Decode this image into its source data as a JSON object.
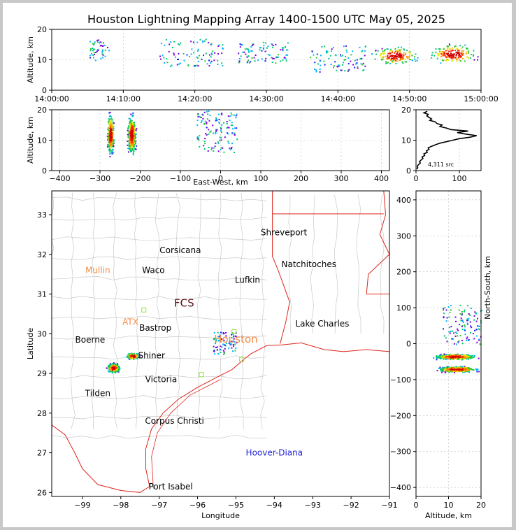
{
  "title": "Houston Lightning Mapping Array 1400-1500 UTC May 05, 2025",
  "colors": {
    "black": "#000000",
    "grid": "#bdbdbd",
    "state_line": "#e0241c",
    "county_line": "#c9c9c9",
    "orange": "#f08c48",
    "blue": "#1e1edc",
    "green_box": "#8ee63a"
  },
  "chart_data": [
    {
      "id": "time-altitude",
      "type": "scatter",
      "ylabel": "Altitude, km",
      "ylim": [
        0,
        20
      ],
      "yticks": [
        0,
        10,
        20
      ],
      "xticks": [
        "14:00:00",
        "14:10:00",
        "14:20:00",
        "14:30:00",
        "14:40:00",
        "14:50:00",
        "15:00:00"
      ],
      "xlim_minutes": [
        0,
        60
      ],
      "clusters": [
        {
          "t": [
            5,
            8
          ],
          "alt": [
            10,
            17
          ],
          "density": "low"
        },
        {
          "t": [
            15,
            24
          ],
          "alt": [
            8,
            17
          ],
          "density": "medium"
        },
        {
          "t": [
            26,
            33
          ],
          "alt": [
            9,
            16
          ],
          "density": "medium"
        },
        {
          "t": [
            36,
            44
          ],
          "alt": [
            6,
            15
          ],
          "density": "medium"
        },
        {
          "t": [
            44,
            52
          ],
          "alt": [
            8,
            15
          ],
          "density": "high"
        },
        {
          "t": [
            52,
            60
          ],
          "alt": [
            8,
            16
          ],
          "density": "high"
        }
      ]
    },
    {
      "id": "ew-altitude",
      "type": "scatter",
      "xlabel": "East-West, km",
      "ylabel": "Altitude, km",
      "xlim": [
        -420,
        420
      ],
      "ylim": [
        0,
        20
      ],
      "xticks": [
        -400,
        -300,
        -200,
        -100,
        0,
        100,
        200,
        300,
        400
      ],
      "yticks": [
        0,
        10,
        20
      ],
      "clusters": [
        {
          "x": [
            -285,
            -265
          ],
          "alt": [
            4,
            20
          ],
          "density": "high",
          "core": [
            -276,
            13
          ]
        },
        {
          "x": [
            -235,
            -210
          ],
          "alt": [
            4,
            20
          ],
          "density": "high",
          "core": [
            -222,
            11
          ]
        },
        {
          "x": [
            -60,
            40
          ],
          "alt": [
            6,
            20
          ],
          "density": "low"
        }
      ]
    },
    {
      "id": "altitude-histogram",
      "type": "line",
      "xlim": [
        0,
        150
      ],
      "ylim": [
        0,
        20
      ],
      "xticks": [
        0,
        100
      ],
      "yticks": [
        0,
        10,
        20
      ],
      "annotation": "4,311 src",
      "alt": [
        0.5,
        1,
        1.5,
        2,
        2.5,
        3,
        3.5,
        4,
        4.5,
        5,
        5.5,
        6,
        6.5,
        7,
        7.5,
        8,
        8.5,
        9,
        9.5,
        10,
        10.5,
        11,
        11.5,
        12,
        12.5,
        13,
        13.5,
        14,
        14.5,
        15,
        15.5,
        16,
        16.5,
        17,
        17.5,
        18,
        18.5,
        19,
        19.5
      ],
      "count": [
        2,
        4,
        3,
        6,
        10,
        8,
        12,
        16,
        14,
        20,
        18,
        26,
        24,
        30,
        28,
        36,
        45,
        55,
        70,
        85,
        100,
        125,
        140,
        115,
        95,
        120,
        80,
        70,
        55,
        60,
        48,
        45,
        32,
        36,
        30,
        25,
        28,
        18,
        26
      ]
    },
    {
      "id": "plan-view",
      "type": "scatter",
      "xlabel": "Longitude",
      "ylabel": "Latitude",
      "xlim": [
        -99.8,
        -91
      ],
      "ylim": [
        25.9,
        33.6
      ],
      "xticks": [
        -99,
        -98,
        -97,
        -96,
        -95,
        -94,
        -93,
        -92,
        -91
      ],
      "yticks": [
        26,
        27,
        28,
        29,
        30,
        31,
        32,
        33
      ],
      "clusters": [
        {
          "lon": [
            -97.9,
            -97.5
          ],
          "lat": [
            29.35,
            29.55
          ],
          "density": "high"
        },
        {
          "lon": [
            -98.4,
            -98.0
          ],
          "lat": [
            29.0,
            29.3
          ],
          "density": "high"
        },
        {
          "lon": [
            -95.6,
            -95.0
          ],
          "lat": [
            29.5,
            30.05
          ],
          "density": "low"
        }
      ],
      "places": [
        {
          "label": "Shreveport",
          "lon": -93.75,
          "lat": 32.55,
          "color": "black"
        },
        {
          "label": "Corsicana",
          "lon": -96.45,
          "lat": 32.1,
          "color": "black"
        },
        {
          "label": "Natchitoches",
          "lon": -93.1,
          "lat": 31.75,
          "color": "black"
        },
        {
          "label": "Mullin",
          "lon": -98.6,
          "lat": 31.6,
          "color": "orange"
        },
        {
          "label": "Waco",
          "lon": -97.15,
          "lat": 31.6,
          "color": "black"
        },
        {
          "label": "Lufkin",
          "lon": -94.7,
          "lat": 31.35,
          "color": "black"
        },
        {
          "label": "FCS",
          "lon": -96.35,
          "lat": 30.75,
          "color": "dark"
        },
        {
          "label": "ATX",
          "lon": -97.75,
          "lat": 30.3,
          "color": "orange"
        },
        {
          "label": "Bastrop",
          "lon": -97.1,
          "lat": 30.15,
          "color": "black"
        },
        {
          "label": "Lake Charles",
          "lon": -92.75,
          "lat": 30.25,
          "color": "black"
        },
        {
          "label": "Boerne",
          "lon": -98.8,
          "lat": 29.85,
          "color": "black"
        },
        {
          "label": "Houston",
          "lon": -95.0,
          "lat": 29.85,
          "color": "orange"
        },
        {
          "label": "Shiner",
          "lon": -97.2,
          "lat": 29.45,
          "color": "black"
        },
        {
          "label": "Victoria",
          "lon": -96.95,
          "lat": 28.85,
          "color": "black"
        },
        {
          "label": "Tilden",
          "lon": -98.6,
          "lat": 28.5,
          "color": "black"
        },
        {
          "label": "Corpus Christi",
          "lon": -96.6,
          "lat": 27.8,
          "color": "black"
        },
        {
          "label": "Hoover-Diana",
          "lon": -94.0,
          "lat": 27.0,
          "color": "blue"
        },
        {
          "label": "Port Isabel",
          "lon": -96.7,
          "lat": 26.15,
          "color": "black"
        }
      ],
      "stations": [
        [
          -97.4,
          30.6
        ],
        [
          -95.05,
          30.05
        ],
        [
          -95.9,
          28.97
        ],
        [
          -94.85,
          29.35
        ]
      ]
    },
    {
      "id": "ns-altitude",
      "type": "scatter",
      "xlabel": "Altitude, km",
      "ylabel": "North-South, km",
      "xlim": [
        0,
        20
      ],
      "ylim": [
        -425,
        425
      ],
      "xticks": [
        0,
        10,
        20
      ],
      "yticks": [
        -400,
        -300,
        -200,
        -100,
        0,
        100,
        200,
        300,
        400
      ],
      "clusters": [
        {
          "alt": [
            4,
            20
          ],
          "ns": [
            -45,
            -25
          ],
          "density": "high",
          "core": [
            11,
            -37
          ]
        },
        {
          "alt": [
            5,
            20
          ],
          "ns": [
            -80,
            -60
          ],
          "density": "high",
          "core": [
            13,
            -70
          ]
        },
        {
          "alt": [
            8,
            20
          ],
          "ns": [
            0,
            110
          ],
          "density": "low"
        }
      ]
    }
  ]
}
